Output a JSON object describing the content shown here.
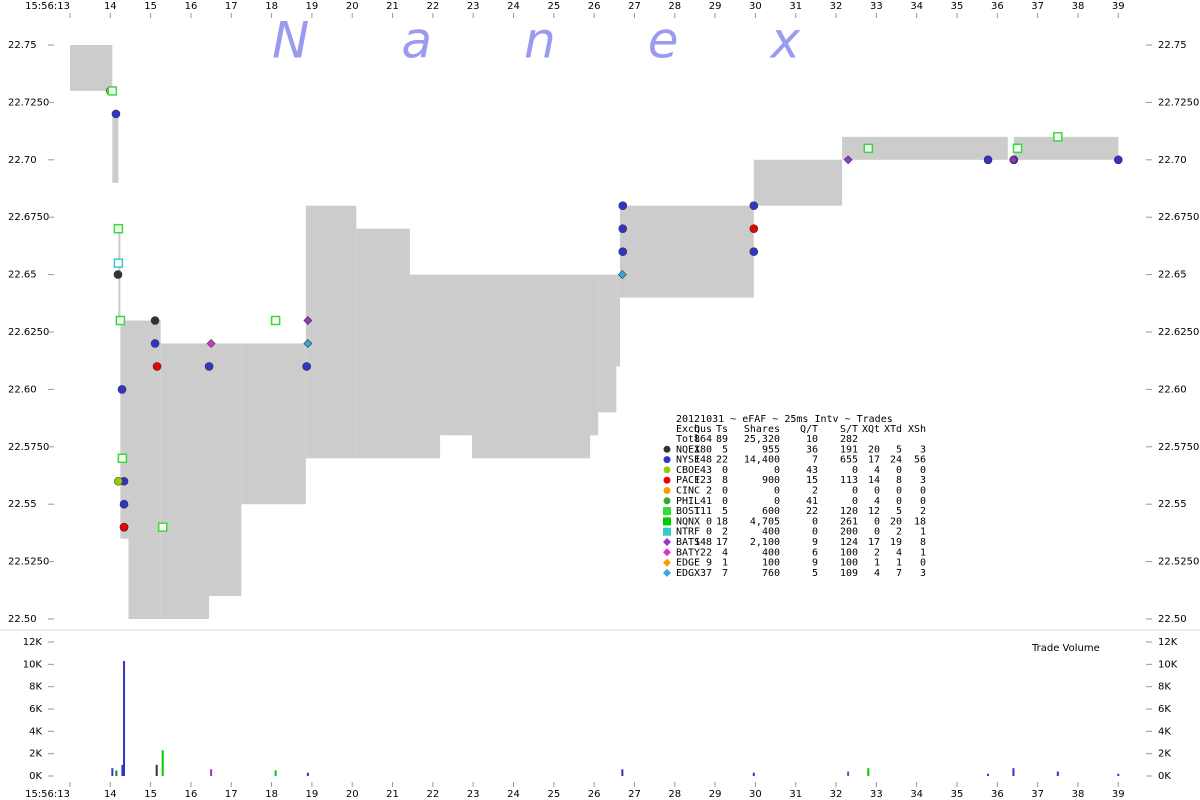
{
  "chart_data": {
    "type": "trades",
    "watermark": "Nanex",
    "xlim": [
      13,
      40
    ],
    "xticks": [
      {
        "value": 13,
        "label": "15:56:13"
      },
      14,
      15,
      16,
      17,
      18,
      19,
      20,
      21,
      22,
      23,
      24,
      25,
      26,
      27,
      28,
      29,
      30,
      31,
      32,
      33,
      34,
      35,
      36,
      37,
      38,
      39
    ],
    "ylim": [
      22.5,
      22.75
    ],
    "yticks": [
      {
        "value": 22.5,
        "label": "22.50"
      },
      {
        "value": 22.525,
        "label": "22.5250"
      },
      22.55,
      {
        "value": 22.575,
        "label": "22.5750"
      },
      {
        "value": 22.6,
        "label": "22.60"
      },
      {
        "value": 22.625,
        "label": "22.6250"
      },
      22.65,
      {
        "value": 22.675,
        "label": "22.6750"
      },
      {
        "value": 22.7,
        "label": "22.70"
      },
      {
        "value": 22.725,
        "label": "22.7250"
      },
      22.75
    ],
    "spread": {
      "color": "#cccccc",
      "start": [
        13.0,
        14.05,
        14.2,
        14.25,
        14.45,
        15.25,
        16.45,
        17.25,
        18.85,
        20.1,
        21.43,
        22.18,
        22.97,
        25.9,
        26.1,
        26.55,
        26.64,
        29.96,
        32.15,
        36.41
      ],
      "end": [
        14.05,
        14.2,
        14.25,
        14.45,
        15.25,
        16.45,
        17.25,
        18.85,
        20.1,
        21.43,
        22.18,
        22.97,
        25.9,
        26.1,
        26.55,
        26.64,
        29.96,
        32.15,
        36.26,
        39.0
      ],
      "ask": [
        22.75,
        22.72,
        22.67,
        22.63,
        22.63,
        22.62,
        22.62,
        22.62,
        22.68,
        22.67,
        22.65,
        22.65,
        22.65,
        22.65,
        22.65,
        22.65,
        22.68,
        22.7,
        22.71,
        22.71
      ],
      "bid": [
        22.73,
        22.69,
        22.63,
        22.535,
        22.5,
        22.5,
        22.51,
        22.55,
        22.57,
        22.57,
        22.57,
        22.58,
        22.57,
        22.58,
        22.59,
        22.61,
        22.64,
        22.68,
        22.7,
        22.7
      ]
    },
    "volume": {
      "label": "Trade Volume",
      "ylim": [
        0,
        12000
      ],
      "yticks": [
        {
          "value": 0,
          "label": "0K"
        },
        {
          "value": 2000,
          "label": "2K"
        },
        {
          "value": 4000,
          "label": "4K"
        },
        {
          "value": 6000,
          "label": "6K"
        },
        {
          "value": 8000,
          "label": "8K"
        },
        {
          "value": 10000,
          "label": "10K"
        },
        {
          "value": 12000,
          "label": "12K"
        }
      ],
      "x": [
        14.05,
        14.15,
        14.3,
        14.34,
        15.15,
        15.3,
        16.5,
        18.1,
        18.9,
        26.7,
        29.96,
        32.3,
        32.8,
        35.77,
        36.4,
        37.5,
        39.0
      ],
      "values": [
        700,
        500,
        1000,
        10300,
        1000,
        2300,
        600,
        500,
        300,
        600,
        300,
        400,
        700,
        200,
        700,
        400,
        200
      ],
      "colors": [
        "#3333cc",
        "#009900",
        "#3333cc",
        "#3333cc",
        "#333333",
        "#00cc00",
        "#9933cc",
        "#00cc00",
        "#3333cc",
        "#3333cc",
        "#3333cc",
        "#9933cc",
        "#00cc00",
        "#3333cc",
        "#3333cc",
        "#3333cc",
        "#3333cc"
      ]
    },
    "legend": {
      "title": "20121031 ~ eFAF ~ 25ms Intv ~ Trades",
      "columns": [
        "Exch",
        "Qus",
        "Ts",
        "Shares",
        "Q/T",
        "S/T",
        "XQt",
        "XTd",
        "XSh"
      ],
      "rows": [
        {
          "cells": [
            "Totl",
            "864",
            "89",
            "25,320",
            "10",
            "282"
          ]
        },
        {
          "cells": [
            "NQEX",
            "180",
            "5",
            "955",
            "36",
            "191",
            "20",
            "5",
            "3"
          ],
          "color": "#333333",
          "shape": "circle",
          "x": [
            14.19,
            15.11
          ],
          "y": [
            22.65,
            22.63
          ]
        },
        {
          "cells": [
            "NYSE",
            "148",
            "22",
            "14,400",
            "7",
            "655",
            "17",
            "24",
            "56"
          ],
          "color": "#3333cc",
          "shape": "circle",
          "x": [
            14.14,
            14.29,
            14.3,
            14.34,
            14.34,
            14.34,
            15.11,
            16.45,
            18.87,
            26.71,
            26.71,
            26.71,
            29.96,
            29.96,
            35.77,
            36.41,
            39.0
          ],
          "y": [
            22.72,
            22.6,
            22.57,
            22.56,
            22.55,
            22.54,
            22.62,
            22.61,
            22.61,
            22.68,
            22.67,
            22.66,
            22.68,
            22.66,
            22.7,
            22.7,
            22.7
          ]
        },
        {
          "cells": [
            "CBOE",
            "43",
            "0",
            "0",
            "43",
            "0",
            "4",
            "0",
            "0"
          ],
          "color": "#99cc00",
          "shape": "circle",
          "x": [
            14.0,
            14.2
          ],
          "y": [
            22.73,
            22.56
          ]
        },
        {
          "cells": [
            "PACF",
            "123",
            "8",
            "900",
            "15",
            "113",
            "14",
            "8",
            "3"
          ],
          "color": "#ee0000",
          "shape": "circle",
          "x": [
            14.34,
            15.16,
            29.96
          ],
          "y": [
            22.54,
            22.61,
            22.67
          ]
        },
        {
          "cells": [
            "CINC",
            "2",
            "0",
            "0",
            "2",
            "0",
            "0",
            "0",
            "0"
          ],
          "color": "#ff9900",
          "shape": "circle",
          "x": [],
          "y": []
        },
        {
          "cells": [
            "PHIL",
            "41",
            "0",
            "0",
            "41",
            "0",
            "4",
            "0",
            "0"
          ],
          "color": "#33aa33",
          "shape": "circle",
          "x": [],
          "y": []
        },
        {
          "cells": [
            "BOST",
            "111",
            "5",
            "600",
            "22",
            "120",
            "12",
            "5",
            "2"
          ],
          "color": "#33dd33",
          "shape": "square",
          "x": [
            14.05,
            14.2,
            14.25,
            14.3,
            15.3,
            18.1,
            32.8,
            36.5,
            37.5
          ],
          "y": [
            22.73,
            22.67,
            22.63,
            22.57,
            22.54,
            22.63,
            22.705,
            22.705,
            22.71
          ]
        },
        {
          "cells": [
            "NQNX",
            "0",
            "18",
            "4,705",
            "0",
            "261",
            "0",
            "20",
            "18"
          ],
          "color": "#00cc00",
          "shape": "square",
          "x": [],
          "y": []
        },
        {
          "cells": [
            "NTRF",
            "0",
            "2",
            "400",
            "0",
            "200",
            "0",
            "2",
            "1"
          ],
          "color": "#33cccc",
          "shape": "square",
          "x": [
            14.2
          ],
          "y": [
            22.655
          ]
        },
        {
          "cells": [
            "BATS",
            "148",
            "17",
            "2,100",
            "9",
            "124",
            "17",
            "19",
            "8"
          ],
          "color": "#9933cc",
          "shape": "diamond",
          "x": [
            18.9,
            32.3,
            36.4
          ],
          "y": [
            22.63,
            22.7,
            22.7
          ]
        },
        {
          "cells": [
            "BATY",
            "22",
            "4",
            "400",
            "6",
            "100",
            "2",
            "4",
            "1"
          ],
          "color": "#dd33cc",
          "shape": "diamond",
          "x": [
            16.5
          ],
          "y": [
            22.62
          ]
        },
        {
          "cells": [
            "EDGE",
            "9",
            "1",
            "100",
            "9",
            "100",
            "1",
            "1",
            "0"
          ],
          "color": "#ff9900",
          "shape": "diamond",
          "x": [],
          "y": []
        },
        {
          "cells": [
            "EDGX",
            "37",
            "7",
            "760",
            "5",
            "109",
            "4",
            "7",
            "3"
          ],
          "color": "#33aadd",
          "shape": "diamond",
          "x": [
            18.9,
            26.7
          ],
          "y": [
            22.62,
            22.65
          ]
        }
      ]
    }
  }
}
